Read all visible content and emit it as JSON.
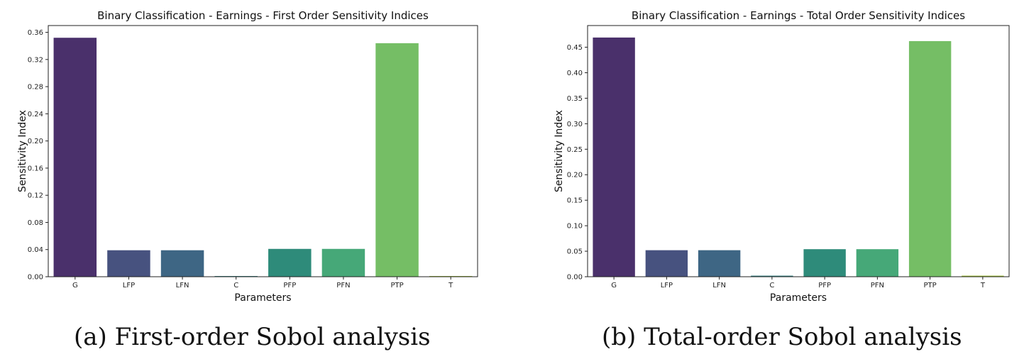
{
  "chart_data": [
    {
      "type": "bar",
      "title": "Binary Classification - Earnings - First Order Sensitivity Indices",
      "xlabel": "Parameters",
      "ylabel": "Sensitivity Index",
      "categories": [
        "G",
        "LFP",
        "LFN",
        "C",
        "PFP",
        "PFN",
        "PTP",
        "T"
      ],
      "values": [
        0.352,
        0.039,
        0.039,
        0.001,
        0.041,
        0.041,
        0.344,
        0.001
      ],
      "colors": [
        "#4a306b",
        "#47527f",
        "#3e6684",
        "#2a7a7c",
        "#2e8b7a",
        "#46a878",
        "#75be65",
        "#9cbc2c"
      ],
      "ylim": [
        0,
        0.37
      ],
      "yticks": [
        "0.00",
        "0.04",
        "0.08",
        "0.12",
        "0.16",
        "0.20",
        "0.24",
        "0.28",
        "0.32",
        "0.36"
      ],
      "grid": false,
      "caption": "(a) First-order Sobol analysis"
    },
    {
      "type": "bar",
      "title": "Binary Classification - Earnings - Total Order Sensitivity Indices",
      "xlabel": "Parameters",
      "ylabel": "Sensitivity Index",
      "categories": [
        "G",
        "LFP",
        "LFN",
        "C",
        "PFP",
        "PFN",
        "PTP",
        "T"
      ],
      "values": [
        0.469,
        0.052,
        0.052,
        0.002,
        0.054,
        0.054,
        0.462,
        0.002
      ],
      "colors": [
        "#4a306b",
        "#47527f",
        "#3e6684",
        "#2a7a7c",
        "#2e8b7a",
        "#46a878",
        "#75be65",
        "#9cbc2c"
      ],
      "ylim": [
        0,
        0.4925
      ],
      "yticks": [
        "0.00",
        "0.05",
        "0.10",
        "0.15",
        "0.20",
        "0.25",
        "0.30",
        "0.35",
        "0.40",
        "0.45"
      ],
      "grid": false,
      "caption": "(b) Total-order Sobol analysis"
    }
  ]
}
